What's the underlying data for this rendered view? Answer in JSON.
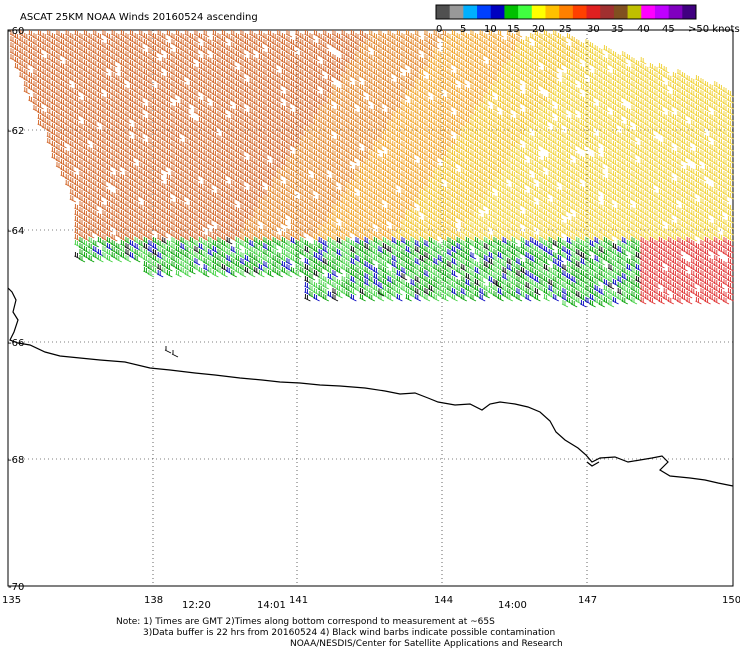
{
  "map": {
    "title": "ASCAT 25KM NOAA Winds 20160524 ascending",
    "latitude_labels": [
      "-60",
      "-62",
      "-64",
      "-66",
      "-68",
      "-70"
    ],
    "longitude_labels": [
      "135",
      "138",
      "141",
      "144",
      "147",
      "150"
    ],
    "time_labels": [
      {
        "text": "12:20",
        "lon": 139
      },
      {
        "text": "14:01",
        "lon": 140.5
      },
      {
        "text": "14:00",
        "lon": 145.5
      }
    ],
    "time_label_color": "#800080",
    "coastline_color": "#000000"
  },
  "legend": {
    "colors": [
      "#505050",
      "#999999",
      "#00b0ff",
      "#0040ff",
      "#0000c0",
      "#00c000",
      "#40ff40",
      "#ffff00",
      "#ffc000",
      "#ff8000",
      "#ff4000",
      "#e02020",
      "#a03030",
      "#805020",
      "#c0c000",
      "#ff00ff",
      "#c000ff",
      "#8000c0",
      "#400080"
    ],
    "tick_labels": [
      "0",
      "5",
      "10",
      "15",
      "20",
      "25",
      "30",
      "35",
      "40",
      "45",
      ">50 knots"
    ]
  },
  "notes": {
    "line1": "Note: 1) Times are GMT 2)Times along bottom correspond to measurement at ~65S",
    "line2": "3)Data buffer is 22 hrs from 20160524 4) Black wind barbs indicate possible contamination",
    "line3": "NOAA/NESDIS/Center for Satellite Applications and Research"
  }
}
